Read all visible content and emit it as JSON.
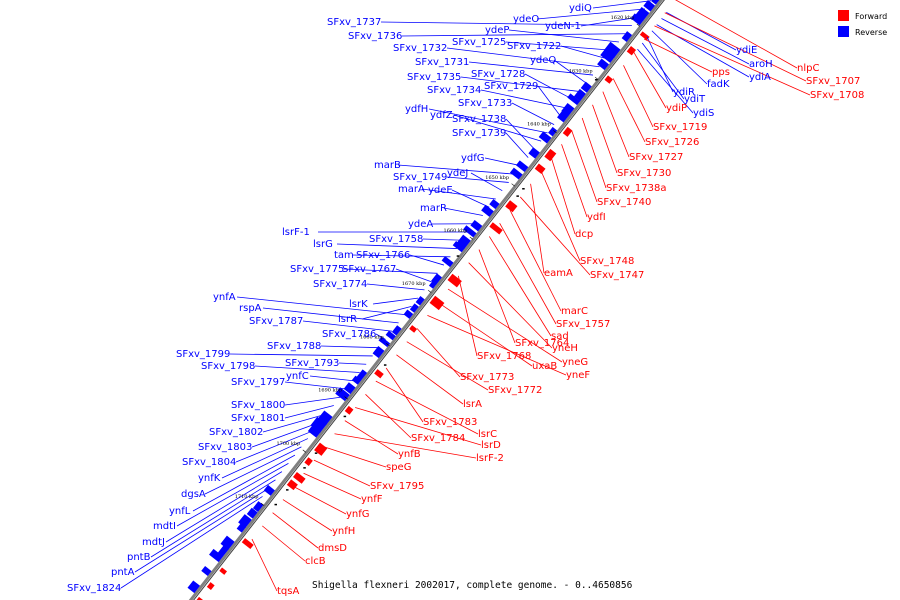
{
  "caption": "Shigella flexneri 2002017, complete genome. - 0..4650856",
  "legend": [
    {
      "label": "Forward",
      "color": "#ff0000"
    },
    {
      "label": "Reverse",
      "color": "#0000ff"
    }
  ],
  "colors": {
    "forward": "#ff0000",
    "reverse": "#0000ff",
    "axis": "#808080"
  },
  "ticks": [
    "1620 kbp",
    "1630 kbp",
    "1640 kbp",
    "1650 kbp",
    "1660 kbp",
    "1670 kbp",
    "1680 kbp",
    "1690 kbp",
    "1700 kbp",
    "1710 kbp"
  ],
  "reverse_genes": [
    "ydiQ",
    "ydeO",
    "ydeN-1",
    "SFxv_1737",
    "SFxv_1736",
    "ydeP",
    "SFxv_1725",
    "SFxv_1722",
    "SFxv_1732",
    "SFxv_1731",
    "ydeQ",
    "SFxv_1735",
    "SFxv_1728",
    "SFxv_1734",
    "SFxv_1729",
    "SFxv_1733",
    "ydfH",
    "ydfZ",
    "SFxv_1738",
    "SFxv_1739",
    "ydfG",
    "marB",
    "SFxv_1749",
    "ydeJ",
    "marA",
    "ydeE",
    "marR",
    "ydeA",
    "lsrF-1",
    "SFxv_1758",
    "lsrG",
    "tam",
    "SFxv_1766",
    "SFxv_1775",
    "SFxv_1767",
    "SFxv_1774",
    "lsrK",
    "lsrR",
    "ynfA",
    "rspA",
    "SFxv_1787",
    "SFxv_1786",
    "SFxv_1788",
    "SFxv_1799",
    "SFxv_1793",
    "SFxv_1798",
    "ynfC",
    "SFxv_1797",
    "SFxv_1800",
    "SFxv_1801",
    "SFxv_1802",
    "SFxv_1803",
    "SFxv_1804",
    "ynfK",
    "dgsA",
    "ynfL",
    "mdtI",
    "mdtJ",
    "pntB",
    "pntA",
    "SFxv_1824",
    "ydiE",
    "aroH",
    "ydiA",
    "fadK",
    "ydiR",
    "ydiT",
    "ydiS"
  ],
  "forward_genes": [
    "nlpC",
    "SFxv_1707",
    "SFxv_1708",
    "pps",
    "ydiP",
    "SFxv_1719",
    "SFxv_1726",
    "SFxv_1727",
    "SFxv_1730",
    "SFxv_1738a",
    "SFxv_1740",
    "ydfI",
    "dcp",
    "SFxv_1748",
    "eamA",
    "SFxv_1747",
    "marC",
    "SFxv_1757",
    "sad",
    "SFxv_1764",
    "yneH",
    "SFxv_1768",
    "yneG",
    "uxaB",
    "yneF",
    "SFxv_1773",
    "SFxv_1772",
    "lsrA",
    "SFxv_1783",
    "lsrC",
    "SFxv_1784",
    "lsrD",
    "ynfB",
    "lsrF-2",
    "speG",
    "SFxv_1795",
    "ynfF",
    "ynfG",
    "ynfH",
    "dmsD",
    "clcB",
    "tqsA"
  ]
}
